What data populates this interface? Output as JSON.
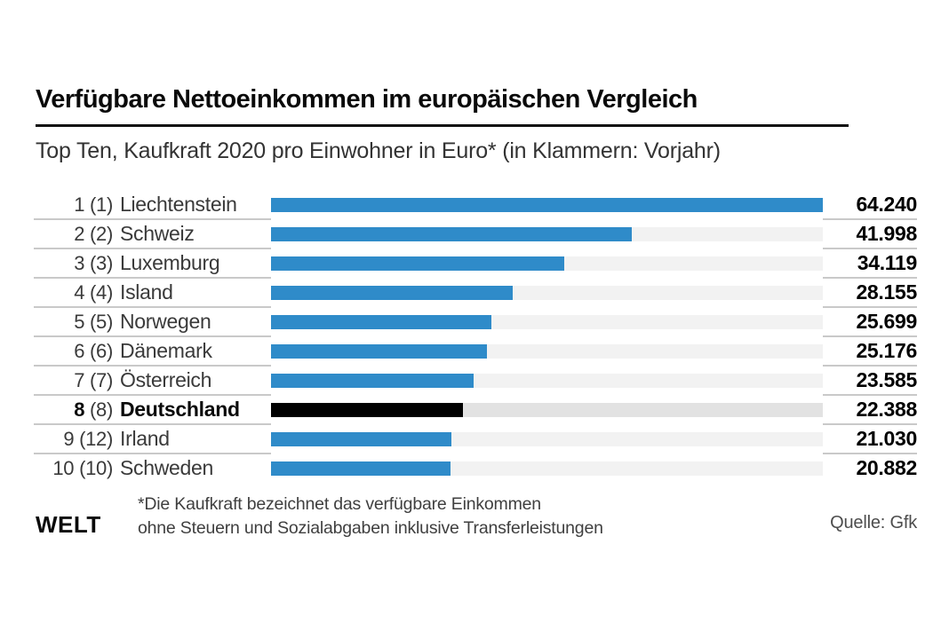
{
  "header": {
    "title": "Verfügbare Nettoeinkommen im europäischen Vergleich",
    "subtitle": "Top Ten, Kaufkraft 2020 pro Einwohner in Euro* (in Klammern: Vorjahr)"
  },
  "footer": {
    "logo": "WELT",
    "footnote_line1": "*Die Kaufkraft bezeichnet das verfügbare Einkommen",
    "footnote_line2": "ohne Steuern und Sozialabgaben inklusive Transferleistungen",
    "source": "Quelle: Gfk"
  },
  "chart_data": {
    "type": "bar",
    "orientation": "horizontal",
    "title": "Verfügbare Nettoeinkommen im europäischen Vergleich",
    "subtitle": "Top Ten, Kaufkraft 2020 pro Einwohner in Euro* (in Klammern: Vorjahr)",
    "unit": "Euro pro Einwohner, Kaufkraft 2020",
    "max_value": 64240,
    "xlim": [
      0,
      64240
    ],
    "grid": false,
    "legend": false,
    "categories": [
      "Liechtenstein",
      "Schweiz",
      "Luxemburg",
      "Island",
      "Norwegen",
      "Dänemark",
      "Österreich",
      "Deutschland",
      "Irland",
      "Schweden"
    ],
    "values": [
      64240,
      41998,
      34119,
      28155,
      25699,
      25176,
      23585,
      22388,
      21030,
      20882
    ],
    "highlight_country": "Deutschland",
    "rows": [
      {
        "rank": "1",
        "prev_rank": "(1)",
        "country": "Liechtenstein",
        "value": 64240,
        "value_label": "64.240",
        "highlight": false
      },
      {
        "rank": "2",
        "prev_rank": "(2)",
        "country": "Schweiz",
        "value": 41998,
        "value_label": "41.998",
        "highlight": false
      },
      {
        "rank": "3",
        "prev_rank": "(3)",
        "country": "Luxemburg",
        "value": 34119,
        "value_label": "34.119",
        "highlight": false
      },
      {
        "rank": "4",
        "prev_rank": "(4)",
        "country": "Island",
        "value": 28155,
        "value_label": "28.155",
        "highlight": false
      },
      {
        "rank": "5",
        "prev_rank": "(5)",
        "country": "Norwegen",
        "value": 25699,
        "value_label": "25.699",
        "highlight": false
      },
      {
        "rank": "6",
        "prev_rank": "(6)",
        "country": "Dänemark",
        "value": 25176,
        "value_label": "25.176",
        "highlight": false
      },
      {
        "rank": "7",
        "prev_rank": "(7)",
        "country": "Österreich",
        "value": 23585,
        "value_label": "23.585",
        "highlight": false
      },
      {
        "rank": "8",
        "prev_rank": "(8)",
        "country": "Deutschland",
        "value": 22388,
        "value_label": "22.388",
        "highlight": true
      },
      {
        "rank": "9",
        "prev_rank": "(12)",
        "country": "Irland",
        "value": 21030,
        "value_label": "21.030",
        "highlight": false
      },
      {
        "rank": "10",
        "prev_rank": "(10)",
        "country": "Schweden",
        "value": 20882,
        "value_label": "20.882",
        "highlight": false
      }
    ],
    "colors": {
      "bar_color": "#2F8BC9",
      "highlight_bar_color": "#000000",
      "track_color": "#F2F2F2",
      "highlight_track_color": "#E2E2E2",
      "separator_color": "#C9C9C9"
    }
  }
}
